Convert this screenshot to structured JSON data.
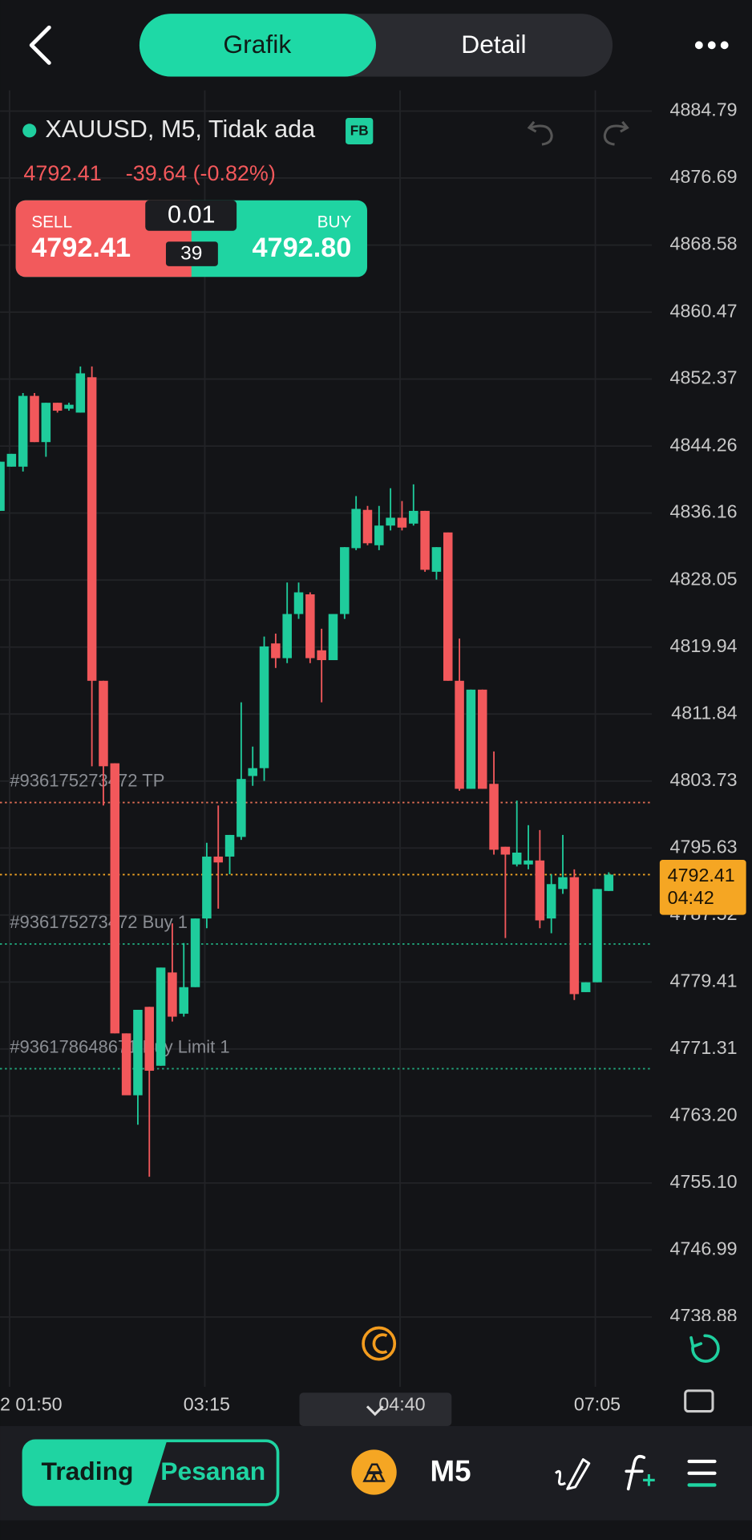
{
  "header": {
    "tabs": [
      "Grafik",
      "Detail"
    ]
  },
  "symbol": {
    "title": "XAUUSD, M5, Tidak ada",
    "badge": "FB",
    "price": "4792.41",
    "change": "-39.64 (-0.82%)"
  },
  "trade": {
    "sell_label": "SELL",
    "sell_price": "4792.41",
    "volume": "0.01",
    "spread": "39",
    "buy_label": "BUY",
    "buy_price": "4792.80"
  },
  "footer": {
    "tabs": [
      "Trading",
      "Pesanan"
    ],
    "timeframe": "M5"
  },
  "chart_data": {
    "type": "candlestick",
    "up_color": "#1fcc9c",
    "down_color": "#f2585b",
    "grid": true,
    "ylim": [
      4738.4,
      4887.3
    ],
    "yticks": [
      4884.79,
      4876.69,
      4868.58,
      4860.47,
      4852.37,
      4844.26,
      4836.16,
      4828.05,
      4819.94,
      4811.84,
      4803.73,
      4795.63,
      4787.52,
      4779.41,
      4771.31,
      {
        "value": 4763.2,
        "label": "4763.20"
      },
      {
        "value": 4755.1,
        "label": "4755.10"
      },
      4746.99,
      4738.88
    ],
    "categories": [
      null,
      "2 01:50",
      null,
      null,
      null,
      null,
      null,
      null,
      null,
      null,
      null,
      null,
      null,
      null,
      null,
      null,
      null,
      null,
      "03:15",
      null,
      null,
      null,
      null,
      null,
      null,
      null,
      null,
      null,
      null,
      null,
      null,
      null,
      null,
      null,
      null,
      "04:40",
      null,
      null,
      null,
      null,
      null,
      null,
      null,
      null,
      null,
      null,
      null,
      null,
      null,
      null,
      null,
      null,
      "07:05",
      null
    ],
    "open": [
      4836.42,
      4841.77,
      4841.77,
      4850.33,
      4844.74,
      4849.5,
      4848.78,
      4848.31,
      4852.59,
      4815.86,
      4805.88,
      4773.2,
      4765.71,
      4776.41,
      4769.28,
      4780.57,
      4775.58,
      4778.79,
      4787.1,
      4794.59,
      4794.59,
      4796.97,
      4804.34,
      4805.29,
      4820.38,
      4818.6,
      4823.94,
      4826.32,
      4819.55,
      4818.36,
      4823.94,
      4831.91,
      4836.54,
      4832.26,
      4834.64,
      4835.59,
      4834.88,
      4836.42,
      4829.05,
      4833.81,
      4815.86,
      4802.79,
      4814.79,
      4803.39,
      4795.78,
      4793.64,
      4793.64,
      4794.12,
      4787.1,
      4790.67,
      4792.1,
      4778.19,
      4779.38,
      4790.43
    ],
    "high": [
      4842.37,
      4843.32,
      4850.68,
      4850.68,
      4849.5,
      4849.5,
      4849.5,
      4853.89,
      4853.89,
      4815.86,
      4805.88,
      4773.2,
      4776.05,
      4776.41,
      4781.16,
      4786.51,
      4784.13,
      4787.1,
      4796.26,
      4800.77,
      4797.21,
      4813.25,
      4807.9,
      4821.21,
      4821.57,
      4827.75,
      4827.75,
      4826.56,
      4822.16,
      4823.94,
      4832.03,
      4838.21,
      4837.02,
      4837.02,
      4839.16,
      4837.61,
      4839.63,
      4836.42,
      4832.03,
      4833.81,
      4820.97,
      4814.79,
      4814.79,
      4807.31,
      4795.78,
      4801.37,
      4798.39,
      4797.8,
      4792.45,
      4797.21,
      4793.05,
      4779.38,
      4790.67,
      4792.69
    ],
    "low": [
      4836.42,
      4841.77,
      4841.18,
      4844.74,
      4842.96,
      4848.31,
      4848.54,
      4848.31,
      4805.52,
      4800.77,
      4773.2,
      4765.71,
      4762.15,
      4755.85,
      4769.28,
      4774.63,
      4775.22,
      4778.79,
      4785.92,
      4788.29,
      4792.45,
      4796.61,
      4803.15,
      4803.74,
      4817.41,
      4818.0,
      4823.35,
      4818.0,
      4813.25,
      4818.36,
      4823.35,
      4831.67,
      4832.26,
      4831.67,
      4834.05,
      4834.05,
      4834.64,
      4829.05,
      4828.1,
      4815.86,
      4802.55,
      4802.79,
      4802.79,
      4794.83,
      4784.73,
      4793.4,
      4793.05,
      4785.92,
      4785.32,
      4790.08,
      4777.24,
      4778.19,
      4779.38,
      4790.43
    ],
    "close": [
      4842.37,
      4843.32,
      4850.33,
      4844.74,
      4849.5,
      4848.54,
      4849.26,
      4853.06,
      4815.86,
      4805.52,
      4773.2,
      4765.71,
      4776.05,
      4768.68,
      4781.16,
      4775.22,
      4778.79,
      4787.1,
      4794.59,
      4793.88,
      4797.21,
      4803.98,
      4805.29,
      4820.02,
      4818.6,
      4823.94,
      4826.56,
      4818.6,
      4818.36,
      4823.94,
      4832.03,
      4836.66,
      4832.5,
      4834.64,
      4835.59,
      4834.4,
      4836.42,
      4829.29,
      4832.03,
      4815.86,
      4802.79,
      4814.79,
      4802.79,
      4795.42,
      4794.83,
      4795.07,
      4794.12,
      4786.87,
      4791.26,
      4792.1,
      4777.95,
      4779.38,
      4790.67,
      4792.41
    ],
    "lines": [
      {
        "label": "#936175273472 TP",
        "value": 4801.13,
        "color": "#e46f55"
      },
      {
        "label": "#936175273472 Buy 1",
        "value": 4784.01,
        "color": "#21a97d"
      },
      {
        "label": "#936178648671 Buy Limit 1",
        "value": 4768.92,
        "color": "#21a97d"
      }
    ],
    "last": {
      "value": 4792.41,
      "time": "04:42",
      "color": "#f5a623"
    }
  }
}
